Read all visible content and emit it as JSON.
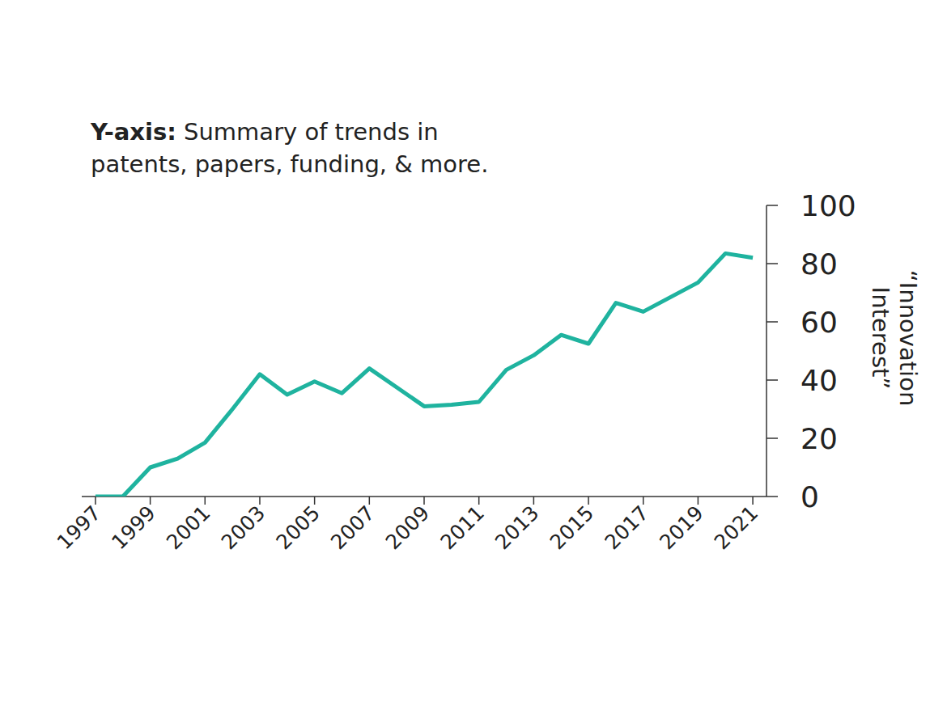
{
  "chart_data": {
    "type": "line",
    "annotation_label": "Y-axis:",
    "annotation": "Summary of trends in patents, papers, funding, & more.",
    "y_label": "“Innovation Interest”",
    "x": [
      1997,
      1998,
      1999,
      2000,
      2001,
      2002,
      2003,
      2004,
      2005,
      2006,
      2007,
      2008,
      2009,
      2010,
      2011,
      2012,
      2013,
      2014,
      2015,
      2016,
      2017,
      2018,
      2019,
      2020,
      2021
    ],
    "values": [
      0,
      0,
      10,
      13,
      18.5,
      30,
      42,
      35,
      39.5,
      35.5,
      44,
      37.5,
      31,
      31.5,
      32.5,
      43.5,
      48.5,
      55.5,
      52.5,
      66.5,
      63.5,
      68.5,
      73.5,
      83.5,
      82
    ],
    "color": "#1fb39f",
    "xlim": [
      1996.5,
      2021.5
    ],
    "xticks": [
      1997,
      1999,
      2001,
      2003,
      2005,
      2007,
      2009,
      2011,
      2013,
      2015,
      2017,
      2019,
      2021
    ],
    "ylim": [
      0,
      100
    ],
    "yticks": [
      0,
      20,
      40,
      60,
      80,
      100
    ],
    "grid": false
  }
}
